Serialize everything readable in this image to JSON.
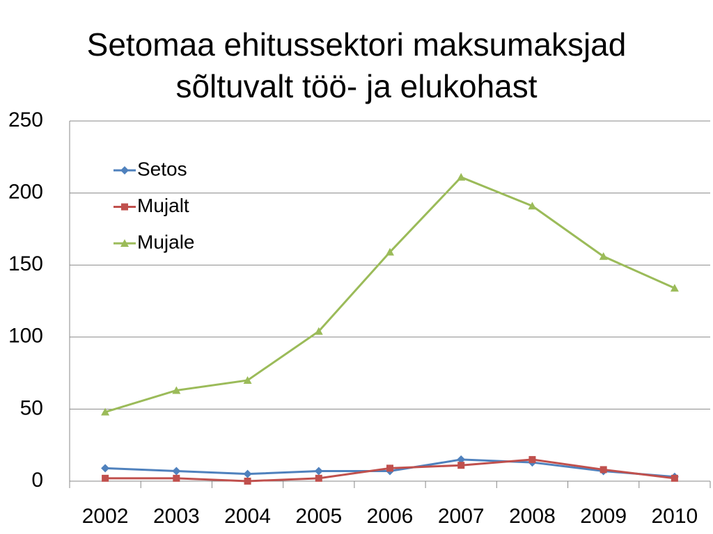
{
  "chart_data": {
    "type": "line",
    "title": "Setomaa ehitussektori maksumaksjad sõltuvalt töö- ja elukohast",
    "categories": [
      "2002",
      "2003",
      "2004",
      "2005",
      "2006",
      "2007",
      "2008",
      "2009",
      "2010"
    ],
    "series": [
      {
        "name": "Setos",
        "color": "#4f81bd",
        "marker": "diamond",
        "values": [
          9,
          7,
          5,
          7,
          7,
          15,
          13,
          7,
          3
        ]
      },
      {
        "name": "Mujalt",
        "color": "#c0504d",
        "marker": "square",
        "values": [
          2,
          2,
          0,
          2,
          9,
          11,
          15,
          8,
          2
        ]
      },
      {
        "name": "Mujale",
        "color": "#9bbb59",
        "marker": "triangle",
        "values": [
          48,
          63,
          70,
          104,
          159,
          211,
          191,
          156,
          134
        ]
      }
    ],
    "ylim": [
      0,
      250
    ],
    "yticks": [
      0,
      50,
      100,
      150,
      200,
      250
    ],
    "grid": true,
    "legend": "top-left"
  }
}
